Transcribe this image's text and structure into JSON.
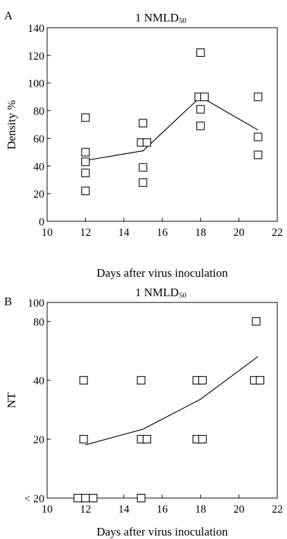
{
  "chart_data": [
    {
      "panel": "A",
      "type": "scatter",
      "title": "1 NMLD",
      "title_sub": "50",
      "xlabel": "Days after virus inoculation",
      "ylabel": "Density %",
      "xlim": [
        10,
        22
      ],
      "ylim": [
        0,
        140
      ],
      "xticks": [
        "10",
        "12",
        "14",
        "16",
        "18",
        "20",
        "22"
      ],
      "yticks": [
        "0",
        "20",
        "40",
        "60",
        "80",
        "100",
        "120",
        "140"
      ],
      "points": [
        {
          "x": 12,
          "y": 75
        },
        {
          "x": 12,
          "y": 50
        },
        {
          "x": 12,
          "y": 43
        },
        {
          "x": 12,
          "y": 35
        },
        {
          "x": 12,
          "y": 22
        },
        {
          "x": 15,
          "y": 71
        },
        {
          "x": 14.9,
          "y": 57
        },
        {
          "x": 15.2,
          "y": 57
        },
        {
          "x": 15,
          "y": 39
        },
        {
          "x": 15,
          "y": 28
        },
        {
          "x": 18,
          "y": 122
        },
        {
          "x": 17.9,
          "y": 90
        },
        {
          "x": 18.2,
          "y": 90
        },
        {
          "x": 18,
          "y": 81
        },
        {
          "x": 18,
          "y": 69
        },
        {
          "x": 21,
          "y": 90
        },
        {
          "x": 21,
          "y": 61
        },
        {
          "x": 21,
          "y": 48
        }
      ],
      "trend": [
        {
          "x": 12,
          "y": 44
        },
        {
          "x": 15,
          "y": 51
        },
        {
          "x": 18,
          "y": 90
        },
        {
          "x": 21,
          "y": 66
        }
      ]
    },
    {
      "panel": "B",
      "type": "scatter",
      "title": "1 NMLD",
      "title_sub": "50",
      "xlabel": "Days after virus inoculation",
      "ylabel": "NT",
      "xlim": [
        10,
        22
      ],
      "yscale": "log",
      "ylim": [
        10,
        100
      ],
      "xticks": [
        "10",
        "12",
        "14",
        "16",
        "18",
        "20",
        "22"
      ],
      "ytick_values": [
        10,
        20,
        40,
        80,
        100
      ],
      "yticks": [
        "< 20",
        "20",
        "40",
        "80",
        "100"
      ],
      "points": [
        {
          "x": 11.6,
          "y": 10
        },
        {
          "x": 12,
          "y": 10
        },
        {
          "x": 12.4,
          "y": 10
        },
        {
          "x": 11.9,
          "y": 20
        },
        {
          "x": 11.9,
          "y": 40
        },
        {
          "x": 14.9,
          "y": 10
        },
        {
          "x": 14.9,
          "y": 20
        },
        {
          "x": 15.2,
          "y": 20
        },
        {
          "x": 14.9,
          "y": 40
        },
        {
          "x": 17.8,
          "y": 20
        },
        {
          "x": 18.1,
          "y": 20
        },
        {
          "x": 17.8,
          "y": 40
        },
        {
          "x": 18.1,
          "y": 40
        },
        {
          "x": 20.8,
          "y": 40
        },
        {
          "x": 21.1,
          "y": 40
        },
        {
          "x": 20.9,
          "y": 80
        }
      ],
      "trend": [
        {
          "x": 12,
          "y": 18.7
        },
        {
          "x": 15,
          "y": 22.5
        },
        {
          "x": 18,
          "y": 32
        },
        {
          "x": 21,
          "y": 53
        }
      ]
    }
  ]
}
